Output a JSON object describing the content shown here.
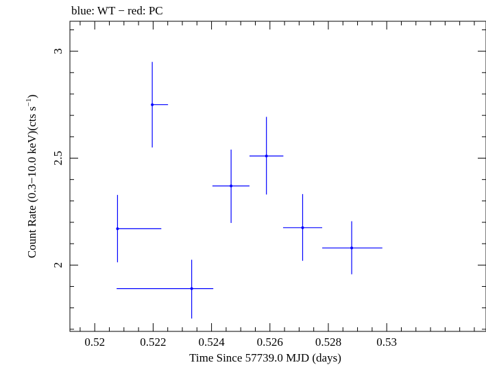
{
  "chart_data": {
    "type": "scatter",
    "title": "blue: WT − red: PC",
    "xlabel": "Time Since 57739.0 MJD (days)",
    "ylabel_main": "Count Rate (0.3−10.0 keV)(cts s",
    "ylabel_sup": "−1",
    "ylabel_end": ")",
    "xlim": [
      0.51915,
      0.5334
    ],
    "ylim": [
      1.69,
      3.14
    ],
    "xticks": [
      0.52,
      0.522,
      0.524,
      0.526,
      0.528,
      0.53
    ],
    "xtick_labels": [
      "0.52",
      "0.522",
      "0.524",
      "0.526",
      "0.528",
      "0.53"
    ],
    "yticks": [
      2,
      2.5,
      3
    ],
    "ytick_labels": [
      "2",
      "2.5",
      "3"
    ],
    "grid": false,
    "series": [
      {
        "color": "#0000ff",
        "points": [
          {
            "x": 0.52078,
            "xerr": [
              0.52077,
              0.52228
            ],
            "y": 2.17,
            "yerr": [
              2.013,
              2.328
            ]
          },
          {
            "x": 0.52197,
            "xerr": [
              0.52196,
              0.52251
            ],
            "y": 2.75,
            "yerr": [
              2.55,
              2.95
            ]
          },
          {
            "x": 0.52332,
            "xerr": [
              0.52075,
              0.52406
            ],
            "y": 1.89,
            "yerr": [
              1.75,
              2.025
            ]
          },
          {
            "x": 0.52467,
            "xerr": [
              0.52403,
              0.5253
            ],
            "y": 2.37,
            "yerr": [
              2.197,
              2.54
            ]
          },
          {
            "x": 0.52588,
            "xerr": [
              0.5253,
              0.52646
            ],
            "y": 2.51,
            "yerr": [
              2.33,
              2.693
            ]
          },
          {
            "x": 0.52712,
            "xerr": [
              0.52645,
              0.52779
            ],
            "y": 2.175,
            "yerr": [
              2.02,
              2.332
            ]
          },
          {
            "x": 0.5288,
            "xerr": [
              0.52779,
              0.52985
            ],
            "y": 2.08,
            "yerr": [
              1.957,
              2.205
            ]
          }
        ]
      }
    ]
  }
}
